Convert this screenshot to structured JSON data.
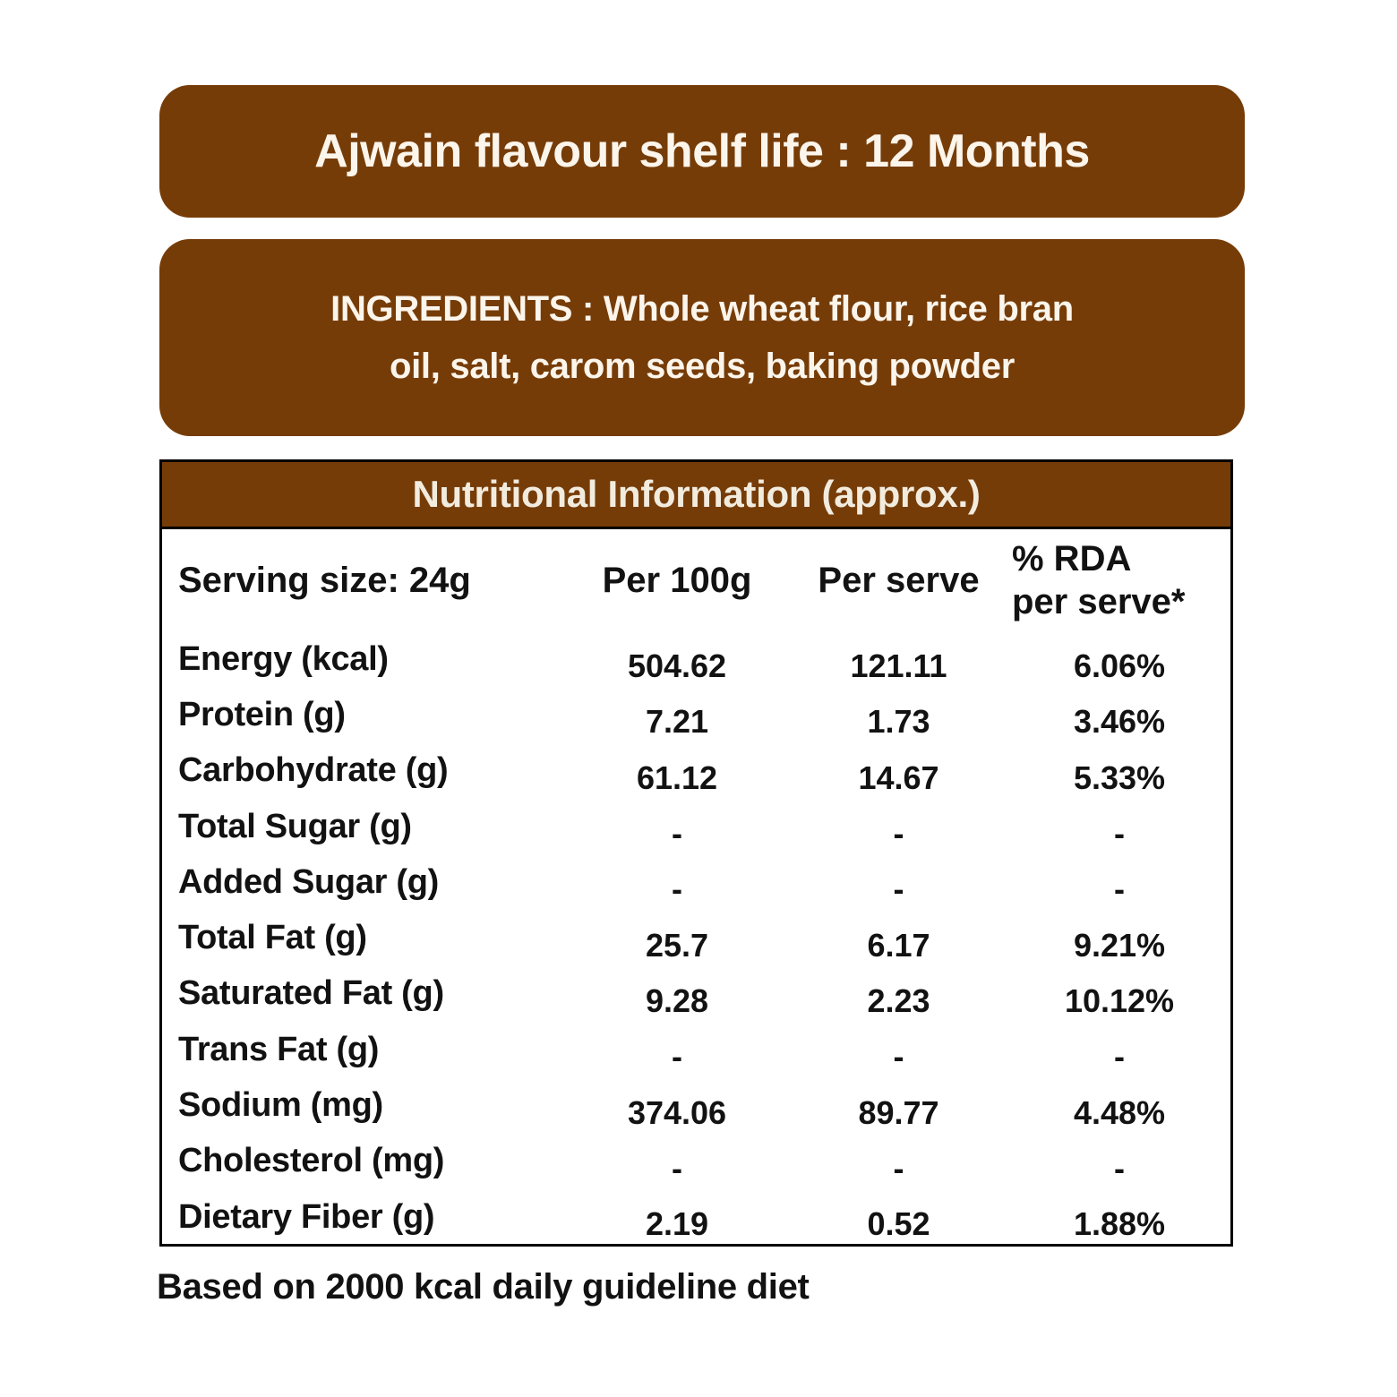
{
  "colors": {
    "brown": "#763C08",
    "banner_text": "#FBF5EB",
    "table_title_text": "#F2ECDF",
    "body_text": "#121212",
    "background": "#FFFFFF"
  },
  "banner": {
    "title": "Ajwain flavour shelf life : 12 Months"
  },
  "ingredients": {
    "line1": "INGREDIENTS : Whole wheat flour, rice bran",
    "line2": "oil, salt, carom seeds, baking powder"
  },
  "table": {
    "title": "Nutritional Information (approx.)",
    "columns": {
      "serving": "Serving size: 24g",
      "per100": "Per 100g",
      "perServe": "Per serve",
      "rda_line1": "% RDA",
      "rda_line2": "per serve*"
    },
    "rows": [
      {
        "label": "Energy (kcal)",
        "per100": "504.62",
        "perServe": "121.11",
        "rda": "6.06%"
      },
      {
        "label": "Protein (g)",
        "per100": "7.21",
        "perServe": "1.73",
        "rda": "3.46%"
      },
      {
        "label": "Carbohydrate (g)",
        "per100": "61.12",
        "perServe": "14.67",
        "rda": "5.33%"
      },
      {
        "label": "Total Sugar (g)",
        "per100": "-",
        "perServe": "-",
        "rda": "-"
      },
      {
        "label": "Added Sugar (g)",
        "per100": "-",
        "perServe": "-",
        "rda": "-"
      },
      {
        "label": "Total Fat (g)",
        "per100": "25.7",
        "perServe": "6.17",
        "rda": "9.21%"
      },
      {
        "label": "Saturated Fat (g)",
        "per100": "9.28",
        "perServe": "2.23",
        "rda": "10.12%"
      },
      {
        "label": "Trans Fat (g)",
        "per100": "-",
        "perServe": "-",
        "rda": "-"
      },
      {
        "label": "Sodium (mg)",
        "per100": "374.06",
        "perServe": "89.77",
        "rda": "4.48%"
      },
      {
        "label": "Cholesterol (mg)",
        "per100": "-",
        "perServe": "-",
        "rda": "-"
      },
      {
        "label": "Dietary Fiber (g)",
        "per100": "2.19",
        "perServe": "0.52",
        "rda": "1.88%"
      }
    ]
  },
  "footer": {
    "note": "Based on 2000 kcal daily guideline diet"
  }
}
